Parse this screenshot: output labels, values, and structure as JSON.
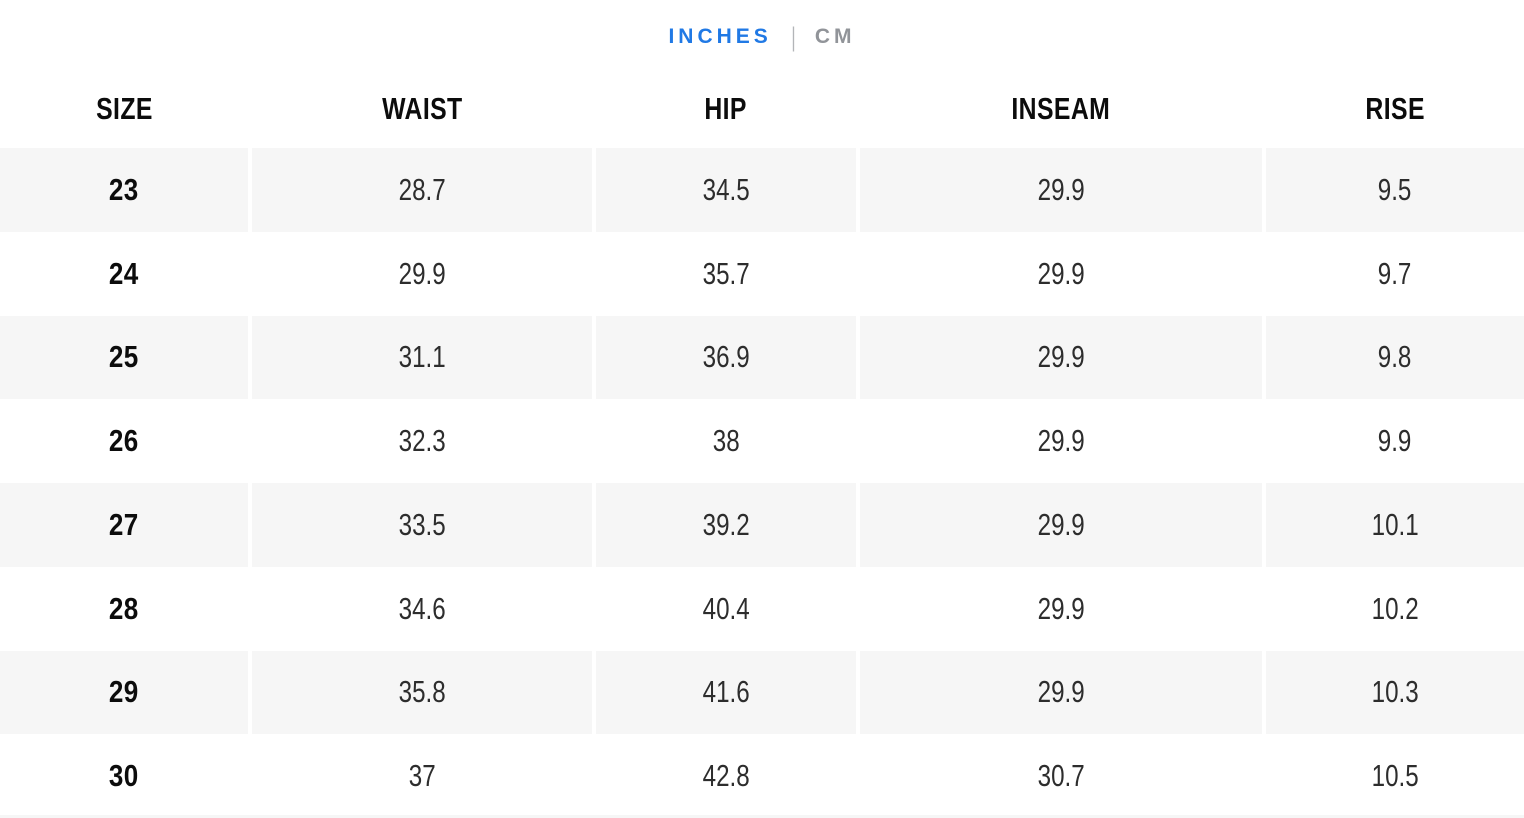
{
  "unit_toggle": {
    "inches_label": "INCHES",
    "cm_label": "CM",
    "divider": "|",
    "selected_unit": "INCHES"
  },
  "colors": {
    "accent": "#2079e5",
    "inactive": "#919499",
    "stripe": "#f6f6f6",
    "heading": "#0c0c0c",
    "value": "#2d2d2d"
  },
  "table": {
    "columns": [
      "SIZE",
      "WAIST",
      "HIP",
      "INSEAM",
      "RISE"
    ],
    "rows": [
      {
        "cells": [
          "23",
          "28.7",
          "34.5",
          "29.9",
          "9.5"
        ]
      },
      {
        "cells": [
          "24",
          "29.9",
          "35.7",
          "29.9",
          "9.7"
        ]
      },
      {
        "cells": [
          "25",
          "31.1",
          "36.9",
          "29.9",
          "9.8"
        ]
      },
      {
        "cells": [
          "26",
          "32.3",
          "38",
          "29.9",
          "9.9"
        ]
      },
      {
        "cells": [
          "27",
          "33.5",
          "39.2",
          "29.9",
          "10.1"
        ]
      },
      {
        "cells": [
          "28",
          "34.6",
          "40.4",
          "29.9",
          "10.2"
        ]
      },
      {
        "cells": [
          "29",
          "35.8",
          "41.6",
          "29.9",
          "10.3"
        ]
      },
      {
        "cells": [
          "30",
          "37",
          "42.8",
          "30.7",
          "10.5"
        ]
      }
    ]
  }
}
